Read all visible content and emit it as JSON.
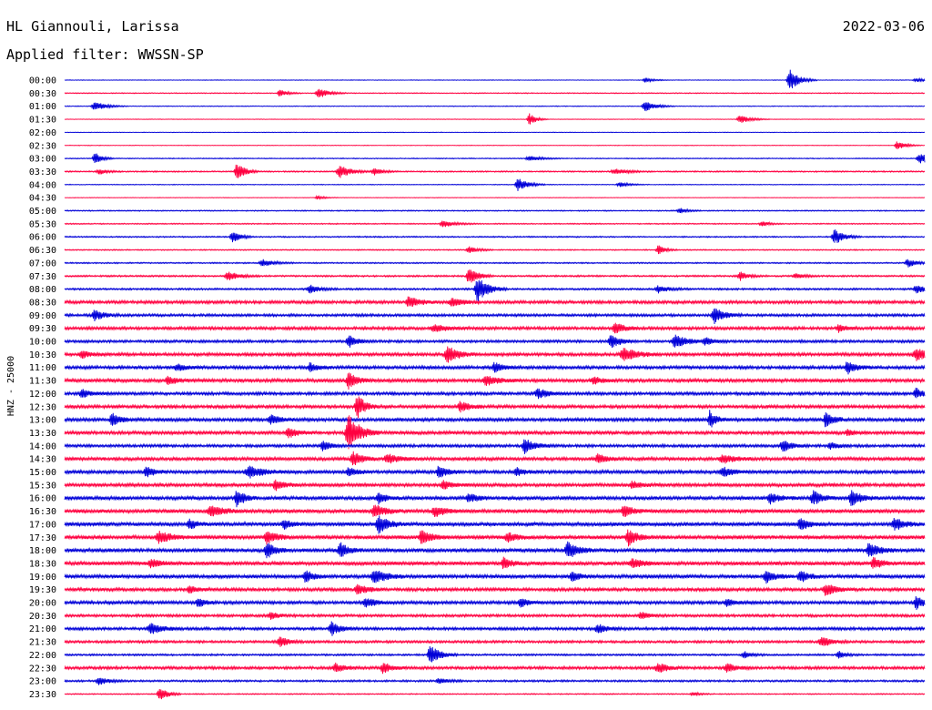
{
  "header": {
    "station": "HL Giannouli, Larissa",
    "date": "2022-03-06",
    "filter": "Applied filter: WWSSN-SP"
  },
  "channel_label": "HNZ - 25000",
  "colors": {
    "trace_a": "#0000d8",
    "trace_b": "#ff0040",
    "background": "#ffffff",
    "text": "#000000"
  },
  "chart_data": {
    "type": "line",
    "title": "HL Giannouli, Larissa",
    "date": "2022-03-06",
    "filter": "WWSSN-SP",
    "ylabel": "HNZ - 25000",
    "row_interval_minutes": 30,
    "row_duration_minutes": 30,
    "xlim_minutes": [
      0,
      30
    ],
    "grid": false,
    "legend": "none",
    "series_color_pattern": "alternating blue (on the hour) / red (half hour)",
    "rows": [
      {
        "label": "00:00",
        "color": "blue",
        "noise": 0.3,
        "events": [
          [
            0.675,
            3,
            0.4
          ],
          [
            0.843,
            12,
            0.6
          ],
          [
            0.99,
            2,
            0.8
          ]
        ]
      },
      {
        "label": "00:30",
        "color": "red",
        "noise": 0.5,
        "events": [
          [
            0.25,
            4,
            0.4
          ],
          [
            0.295,
            6,
            0.6
          ]
        ]
      },
      {
        "label": "01:00",
        "color": "blue",
        "noise": 0.4,
        "events": [
          [
            0.035,
            5,
            0.8
          ],
          [
            0.675,
            6,
            0.7
          ]
        ]
      },
      {
        "label": "01:30",
        "color": "red",
        "noise": 0.3,
        "events": [
          [
            0.54,
            7,
            0.3
          ],
          [
            0.785,
            5,
            0.7
          ]
        ]
      },
      {
        "label": "02:00",
        "color": "blue",
        "noise": 0.3,
        "events": []
      },
      {
        "label": "02:30",
        "color": "red",
        "noise": 0.3,
        "events": [
          [
            0.968,
            5,
            0.5
          ]
        ]
      },
      {
        "label": "03:00",
        "color": "blue",
        "noise": 0.5,
        "events": [
          [
            0.035,
            7,
            0.3
          ],
          [
            0.54,
            3,
            0.8
          ],
          [
            0.995,
            6,
            1.0
          ]
        ]
      },
      {
        "label": "03:30",
        "color": "red",
        "noise": 0.7,
        "events": [
          [
            0.04,
            3,
            0.5
          ],
          [
            0.2,
            11,
            0.4
          ],
          [
            0.32,
            7,
            0.8
          ],
          [
            0.36,
            4,
            0.5
          ],
          [
            0.64,
            3,
            1.0
          ]
        ]
      },
      {
        "label": "04:00",
        "color": "blue",
        "noise": 0.4,
        "events": [
          [
            0.527,
            8,
            0.6
          ],
          [
            0.645,
            3,
            0.5
          ]
        ]
      },
      {
        "label": "04:30",
        "color": "red",
        "noise": 0.3,
        "events": [
          [
            0.294,
            2,
            0.4
          ]
        ]
      },
      {
        "label": "05:00",
        "color": "blue",
        "noise": 0.6,
        "events": [
          [
            0.715,
            3,
            0.4
          ]
        ]
      },
      {
        "label": "05:30",
        "color": "red",
        "noise": 0.6,
        "events": [
          [
            0.44,
            4,
            0.8
          ],
          [
            0.81,
            3,
            0.4
          ]
        ]
      },
      {
        "label": "06:00",
        "color": "blue",
        "noise": 0.7,
        "events": [
          [
            0.195,
            7,
            0.4
          ],
          [
            0.895,
            9,
            0.6
          ]
        ]
      },
      {
        "label": "06:30",
        "color": "red",
        "noise": 0.6,
        "events": [
          [
            0.47,
            4,
            0.5
          ],
          [
            0.69,
            6,
            0.3
          ]
        ]
      },
      {
        "label": "07:00",
        "color": "blue",
        "noise": 0.7,
        "events": [
          [
            0.23,
            4,
            0.8
          ],
          [
            0.98,
            5,
            0.5
          ]
        ]
      },
      {
        "label": "07:30",
        "color": "red",
        "noise": 0.9,
        "events": [
          [
            0.19,
            5,
            0.8
          ],
          [
            0.47,
            10,
            0.5
          ],
          [
            0.785,
            5,
            0.4
          ],
          [
            0.85,
            3,
            0.5
          ]
        ]
      },
      {
        "label": "08:00",
        "color": "blue",
        "noise": 1.0,
        "events": [
          [
            0.285,
            5,
            0.6
          ],
          [
            0.48,
            14,
            0.7
          ],
          [
            0.69,
            4,
            0.7
          ],
          [
            0.99,
            5,
            0.5
          ]
        ]
      },
      {
        "label": "08:30",
        "color": "red",
        "noise": 1.6,
        "events": [
          [
            0.4,
            6,
            0.7
          ],
          [
            0.45,
            5,
            0.7
          ]
        ]
      },
      {
        "label": "09:00",
        "color": "blue",
        "noise": 1.4,
        "events": [
          [
            0.035,
            6,
            0.5
          ],
          [
            0.755,
            9,
            0.6
          ]
        ]
      },
      {
        "label": "09:30",
        "color": "red",
        "noise": 1.6,
        "events": [
          [
            0.43,
            4,
            0.9
          ],
          [
            0.64,
            7,
            0.5
          ],
          [
            0.9,
            4,
            0.4
          ]
        ]
      },
      {
        "label": "10:00",
        "color": "blue",
        "noise": 1.4,
        "events": [
          [
            0.33,
            7,
            0.5
          ],
          [
            0.635,
            8,
            0.5
          ],
          [
            0.71,
            8,
            0.8
          ],
          [
            0.745,
            4,
            0.5
          ]
        ]
      },
      {
        "label": "10:30",
        "color": "red",
        "noise": 1.7,
        "events": [
          [
            0.02,
            4,
            0.5
          ],
          [
            0.445,
            9,
            0.7
          ],
          [
            0.65,
            8,
            0.9
          ],
          [
            0.99,
            7,
            0.8
          ]
        ]
      },
      {
        "label": "11:00",
        "color": "blue",
        "noise": 1.7,
        "events": [
          [
            0.13,
            4,
            0.5
          ],
          [
            0.285,
            5,
            0.4
          ],
          [
            0.5,
            6,
            0.4
          ],
          [
            0.91,
            7,
            0.5
          ]
        ]
      },
      {
        "label": "11:30",
        "color": "red",
        "noise": 1.8,
        "events": [
          [
            0.12,
            5,
            0.5
          ],
          [
            0.33,
            9,
            0.5
          ],
          [
            0.49,
            6,
            0.8
          ],
          [
            0.615,
            4,
            0.5
          ]
        ]
      },
      {
        "label": "12:00",
        "color": "blue",
        "noise": 1.6,
        "events": [
          [
            0.02,
            5,
            0.5
          ],
          [
            0.55,
            6,
            0.6
          ],
          [
            0.99,
            6,
            0.5
          ]
        ]
      },
      {
        "label": "12:30",
        "color": "red",
        "noise": 1.7,
        "events": [
          [
            0.34,
            14,
            0.4
          ],
          [
            0.46,
            6,
            0.5
          ]
        ]
      },
      {
        "label": "13:00",
        "color": "blue",
        "noise": 1.8,
        "events": [
          [
            0.055,
            8,
            0.4
          ],
          [
            0.24,
            5,
            0.6
          ],
          [
            0.75,
            10,
            0.3
          ],
          [
            0.885,
            9,
            0.4
          ]
        ]
      },
      {
        "label": "13:30",
        "color": "red",
        "noise": 1.8,
        "events": [
          [
            0.26,
            5,
            0.6
          ],
          [
            0.33,
            20,
            0.8
          ],
          [
            0.91,
            4,
            0.3
          ]
        ]
      },
      {
        "label": "14:00",
        "color": "blue",
        "noise": 1.5,
        "events": [
          [
            0.3,
            6,
            0.4
          ],
          [
            0.535,
            8,
            0.6
          ],
          [
            0.835,
            7,
            0.5
          ],
          [
            0.89,
            4,
            0.4
          ]
        ]
      },
      {
        "label": "14:30",
        "color": "red",
        "noise": 1.8,
        "events": [
          [
            0.335,
            9,
            0.5
          ],
          [
            0.375,
            5,
            0.8
          ],
          [
            0.62,
            5,
            0.5
          ],
          [
            0.765,
            5,
            0.7
          ]
        ]
      },
      {
        "label": "15:00",
        "color": "blue",
        "noise": 1.8,
        "events": [
          [
            0.095,
            6,
            0.4
          ],
          [
            0.215,
            6,
            1.2
          ],
          [
            0.33,
            5,
            0.4
          ],
          [
            0.435,
            7,
            0.4
          ],
          [
            0.525,
            5,
            0.4
          ],
          [
            0.765,
            5,
            0.7
          ]
        ]
      },
      {
        "label": "15:30",
        "color": "red",
        "noise": 1.8,
        "events": [
          [
            0.245,
            6,
            0.5
          ],
          [
            0.44,
            5,
            0.5
          ],
          [
            0.66,
            4,
            0.5
          ]
        ]
      },
      {
        "label": "16:00",
        "color": "blue",
        "noise": 1.9,
        "events": [
          [
            0.2,
            9,
            0.4
          ],
          [
            0.365,
            6,
            0.5
          ],
          [
            0.47,
            5,
            0.5
          ],
          [
            0.82,
            6,
            0.5
          ],
          [
            0.87,
            8,
            0.5
          ],
          [
            0.915,
            9,
            0.6
          ]
        ]
      },
      {
        "label": "16:30",
        "color": "red",
        "noise": 2.0,
        "events": [
          [
            0.17,
            6,
            0.9
          ],
          [
            0.36,
            7,
            0.7
          ],
          [
            0.43,
            6,
            0.6
          ],
          [
            0.65,
            6,
            0.6
          ]
        ]
      },
      {
        "label": "17:00",
        "color": "blue",
        "noise": 2.0,
        "events": [
          [
            0.145,
            5,
            0.4
          ],
          [
            0.255,
            5,
            0.5
          ],
          [
            0.365,
            10,
            0.6
          ],
          [
            0.855,
            7,
            0.4
          ],
          [
            0.965,
            7,
            0.6
          ]
        ]
      },
      {
        "label": "17:30",
        "color": "red",
        "noise": 2.0,
        "events": [
          [
            0.11,
            7,
            0.8
          ],
          [
            0.235,
            7,
            0.6
          ],
          [
            0.415,
            8,
            0.6
          ],
          [
            0.515,
            5,
            0.6
          ],
          [
            0.655,
            9,
            0.5
          ]
        ]
      },
      {
        "label": "18:00",
        "color": "blue",
        "noise": 2.0,
        "events": [
          [
            0.235,
            10,
            0.4
          ],
          [
            0.32,
            9,
            0.4
          ],
          [
            0.585,
            10,
            0.6
          ],
          [
            0.935,
            8,
            0.6
          ]
        ]
      },
      {
        "label": "18:30",
        "color": "red",
        "noise": 2.0,
        "events": [
          [
            0.1,
            5,
            0.5
          ],
          [
            0.51,
            6,
            0.4
          ],
          [
            0.66,
            5,
            0.6
          ],
          [
            0.94,
            6,
            0.5
          ]
        ]
      },
      {
        "label": "19:00",
        "color": "blue",
        "noise": 1.9,
        "events": [
          [
            0.28,
            7,
            0.4
          ],
          [
            0.36,
            9,
            0.7
          ],
          [
            0.59,
            6,
            0.4
          ],
          [
            0.815,
            7,
            0.5
          ],
          [
            0.855,
            7,
            0.4
          ]
        ]
      },
      {
        "label": "19:30",
        "color": "red",
        "noise": 1.7,
        "events": [
          [
            0.145,
            4,
            0.4
          ],
          [
            0.34,
            6,
            0.6
          ],
          [
            0.885,
            7,
            0.7
          ]
        ]
      },
      {
        "label": "20:00",
        "color": "blue",
        "noise": 1.7,
        "events": [
          [
            0.155,
            5,
            0.4
          ],
          [
            0.35,
            5,
            0.6
          ],
          [
            0.53,
            5,
            0.5
          ],
          [
            0.77,
            4,
            0.5
          ],
          [
            0.99,
            7,
            0.4
          ]
        ]
      },
      {
        "label": "20:30",
        "color": "red",
        "noise": 1.4,
        "events": [
          [
            0.24,
            4,
            0.5
          ],
          [
            0.67,
            4,
            0.5
          ]
        ]
      },
      {
        "label": "21:00",
        "color": "blue",
        "noise": 1.5,
        "events": [
          [
            0.1,
            6,
            0.8
          ],
          [
            0.31,
            8,
            0.5
          ],
          [
            0.62,
            5,
            0.6
          ]
        ]
      },
      {
        "label": "21:30",
        "color": "red",
        "noise": 1.3,
        "events": [
          [
            0.25,
            6,
            0.5
          ],
          [
            0.88,
            6,
            0.6
          ]
        ]
      },
      {
        "label": "22:00",
        "color": "blue",
        "noise": 1.0,
        "events": [
          [
            0.425,
            11,
            0.6
          ],
          [
            0.79,
            4,
            0.4
          ],
          [
            0.9,
            4,
            0.4
          ]
        ]
      },
      {
        "label": "22:30",
        "color": "red",
        "noise": 1.5,
        "events": [
          [
            0.315,
            5,
            0.6
          ],
          [
            0.37,
            6,
            0.5
          ],
          [
            0.69,
            6,
            0.6
          ],
          [
            0.77,
            5,
            0.6
          ]
        ]
      },
      {
        "label": "23:00",
        "color": "blue",
        "noise": 1.0,
        "events": [
          [
            0.04,
            4,
            0.7
          ],
          [
            0.435,
            3,
            0.6
          ]
        ]
      },
      {
        "label": "23:30",
        "color": "red",
        "noise": 0.6,
        "events": [
          [
            0.11,
            9,
            0.4
          ],
          [
            0.73,
            2,
            0.4
          ]
        ]
      }
    ]
  }
}
